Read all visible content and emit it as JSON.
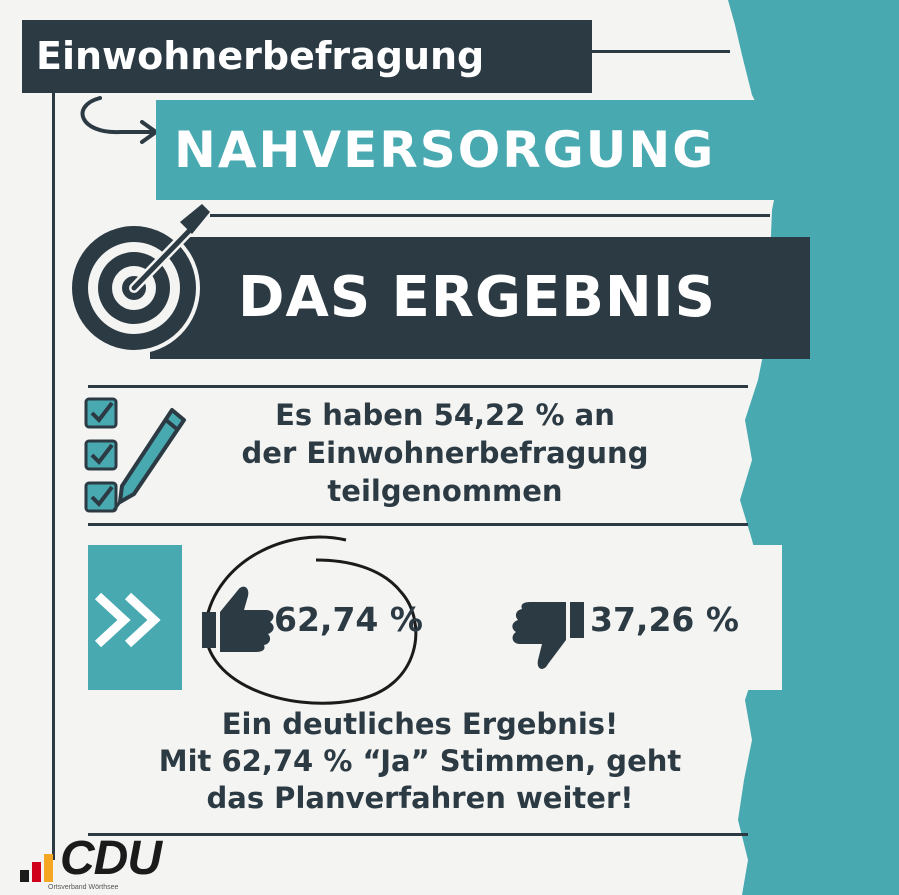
{
  "header": {
    "title": "Einwohnerbefragung"
  },
  "topic": {
    "title": "NAHVERSORGUNG"
  },
  "result": {
    "title": "DAS ERGEBNIS"
  },
  "participation": {
    "line1": "Es haben 54,22 % an",
    "line2": "der Einwohnerbefragung",
    "line3": "teilgenommen"
  },
  "vote": {
    "yes_percent": "62,74 %",
    "no_percent": "37,26 %"
  },
  "conclusion": {
    "line1": "Ein deutliches Ergebnis!",
    "line2": "Mit 62,74 % “Ja” Stimmen, geht",
    "line3": "das Planverfahren weiter!"
  },
  "logo": {
    "text": "CDU",
    "subtext": "Ortsverband Wörthsee"
  },
  "colors": {
    "teal": "#48a9b1",
    "navy": "#2c3a44",
    "background": "#f4f4f2"
  },
  "icons": [
    "curved-arrow-icon",
    "target-icon",
    "checklist-icon",
    "pen-icon",
    "chevron-double-right-icon",
    "thumbs-up-icon",
    "thumbs-down-icon"
  ]
}
